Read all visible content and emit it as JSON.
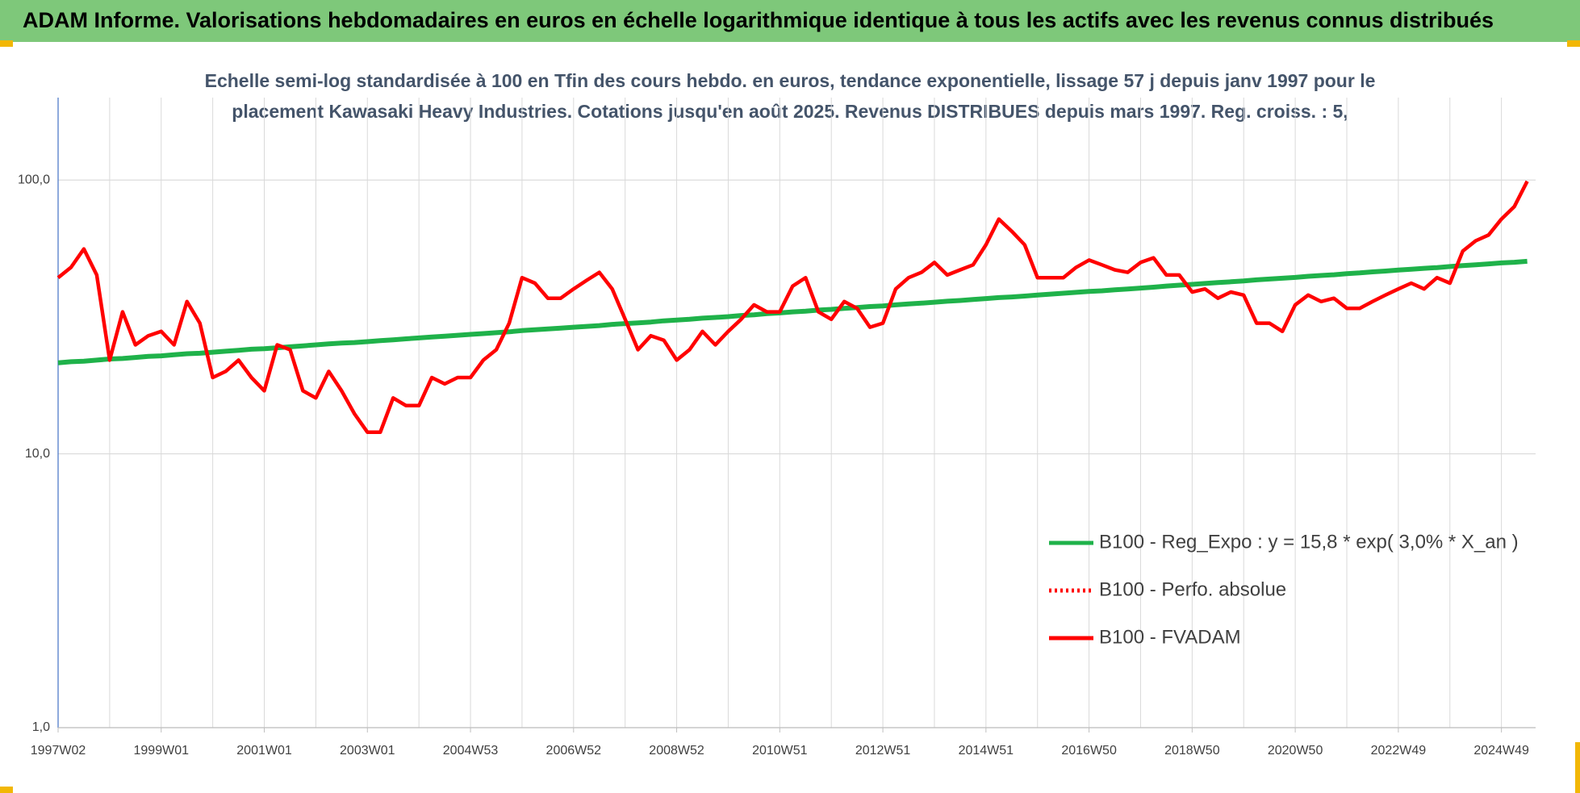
{
  "header": {
    "title": "ADAM Informe. Valorisations hebdomadaires en euros en échelle logarithmique identique à tous les actifs avec les revenus connus distribués"
  },
  "chart_data": {
    "type": "line",
    "subtitle": [
      "Echelle semi-log standardisée à 100 en Tfin des cours hebdo. en euros, tendance exponentielle, lissage 57 j depuis janv 1997 pour le",
      "placement Kawasaki Heavy Industries. Cotations jusqu'en août 2025. Revenus DISTRIBUES depuis mars 1997. Reg. croiss. : 5,"
    ],
    "log_scale": true,
    "grid": true,
    "legend_position": "lower-right",
    "ylim": [
      1,
      200
    ],
    "yticks": [
      {
        "value": 1,
        "label": "1,0"
      },
      {
        "value": 10,
        "label": "10,0"
      },
      {
        "value": 100,
        "label": "100,0"
      }
    ],
    "categories": [
      "1997W02",
      null,
      null,
      null,
      null,
      null,
      null,
      null,
      "1999W01",
      null,
      null,
      null,
      null,
      null,
      null,
      null,
      "2001W01",
      null,
      null,
      null,
      null,
      null,
      null,
      null,
      "2003W01",
      null,
      null,
      null,
      null,
      null,
      null,
      null,
      "2004W53",
      null,
      null,
      null,
      null,
      null,
      null,
      null,
      "2006W52",
      null,
      null,
      null,
      null,
      null,
      null,
      null,
      "2008W52",
      null,
      null,
      null,
      null,
      null,
      null,
      null,
      "2010W51",
      null,
      null,
      null,
      null,
      null,
      null,
      null,
      "2012W51",
      null,
      null,
      null,
      null,
      null,
      null,
      null,
      "2014W51",
      null,
      null,
      null,
      null,
      null,
      null,
      null,
      "2016W50",
      null,
      null,
      null,
      null,
      null,
      null,
      null,
      "2018W50",
      null,
      null,
      null,
      null,
      null,
      null,
      null,
      "2020W50",
      null,
      null,
      null,
      null,
      null,
      null,
      null,
      "2022W49",
      null,
      null,
      null,
      null,
      null,
      null,
      null,
      "2024W49",
      null,
      null
    ],
    "series": [
      {
        "name": "B100 - Reg_Expo : y = 15,8 * exp( 3,0% *  X_an )",
        "color": "#1fb24a",
        "style": "solid",
        "values": [
          21.5,
          21.7,
          21.8,
          22.0,
          22.2,
          22.3,
          22.5,
          22.7,
          22.8,
          23.0,
          23.2,
          23.3,
          23.5,
          23.7,
          23.9,
          24.1,
          24.2,
          24.4,
          24.6,
          24.8,
          25.0,
          25.2,
          25.4,
          25.5,
          25.7,
          25.9,
          26.1,
          26.3,
          26.5,
          26.7,
          26.9,
          27.1,
          27.3,
          27.5,
          27.7,
          27.9,
          28.2,
          28.4,
          28.6,
          28.8,
          29.0,
          29.2,
          29.4,
          29.7,
          29.9,
          30.1,
          30.3,
          30.6,
          30.8,
          31.0,
          31.3,
          31.5,
          31.7,
          32.0,
          32.2,
          32.5,
          32.7,
          33.0,
          33.2,
          33.5,
          33.7,
          34.0,
          34.2,
          34.5,
          34.7,
          35.0,
          35.3,
          35.5,
          35.8,
          36.1,
          36.3,
          36.6,
          36.9,
          37.2,
          37.4,
          37.7,
          38.0,
          38.3,
          38.6,
          38.9,
          39.2,
          39.4,
          39.7,
          40.0,
          40.3,
          40.6,
          41.0,
          41.3,
          41.6,
          41.9,
          42.2,
          42.5,
          42.8,
          43.2,
          43.5,
          43.8,
          44.1,
          44.5,
          44.8,
          45.1,
          45.5,
          45.8,
          46.2,
          46.5,
          46.9,
          47.2,
          47.6,
          47.9,
          48.3,
          48.7,
          49.0,
          49.4,
          49.8,
          50.1,
          50.5
        ]
      },
      {
        "name": "B100 - Perfo. absolue",
        "color": "#ff0000",
        "style": "dotted"
      },
      {
        "name": "B100 - FVADAM",
        "color": "#ff0000",
        "style": "solid",
        "values": [
          44,
          48,
          56,
          45,
          22,
          33,
          25,
          27,
          28,
          25,
          36,
          30,
          19,
          20,
          22,
          19,
          17,
          25,
          24,
          17,
          16,
          20,
          17,
          14,
          12,
          12,
          16,
          15,
          15,
          19,
          18,
          19,
          19,
          22,
          24,
          30,
          44,
          42,
          37,
          37,
          40,
          43,
          46,
          40,
          31,
          24,
          27,
          26,
          22,
          24,
          28,
          25,
          28,
          31,
          35,
          33,
          33,
          41,
          44,
          33,
          31,
          36,
          34,
          29,
          30,
          40,
          44,
          46,
          50,
          45,
          47,
          49,
          58,
          72,
          65,
          58,
          44,
          44,
          44,
          48,
          51,
          49,
          47,
          46,
          50,
          52,
          45,
          45,
          39,
          40,
          37,
          39,
          38,
          30,
          30,
          28,
          35,
          38,
          36,
          37,
          34,
          34,
          36,
          38,
          40,
          42,
          40,
          44,
          42,
          55,
          60,
          63,
          72,
          80,
          99
        ]
      }
    ]
  }
}
